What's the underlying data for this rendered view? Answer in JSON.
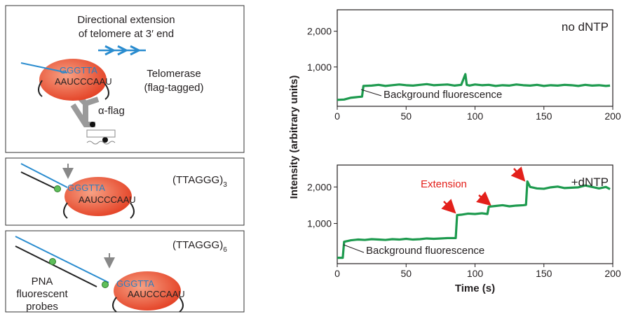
{
  "diagram": {
    "panel1": {
      "title_line1": "Directional extension",
      "title_line2": "of telomere at 3′ end",
      "enzyme_line1": "Telomerase",
      "enzyme_line2": "(flag-tagged)",
      "dna": "GGGTTA",
      "rna": "AAUCCCAAU",
      "antibody": "α-flag"
    },
    "panel2": {
      "repeat": "(TTAGGG)",
      "count": "3",
      "dna": "GGGTTA",
      "rna": "AAUCCCAAU"
    },
    "panel3": {
      "repeat": "(TTAGGG)",
      "count": "6",
      "dna": "GGGTTA",
      "rna": "AAUCCCAAU",
      "probe_line1": "PNA",
      "probe_line2": "fluorescent",
      "probe_line3": "probes"
    }
  },
  "shared_y_label": "Intensity (arbitrary units)",
  "chart_data": [
    {
      "type": "line",
      "label": "no dNTP",
      "annotations": [
        "Background fluorescence"
      ],
      "x": [
        0,
        5,
        10,
        15,
        18,
        19,
        25,
        30,
        35,
        40,
        45,
        50,
        55,
        60,
        65,
        70,
        75,
        80,
        85,
        90,
        93,
        94,
        96,
        100,
        105,
        110,
        115,
        120,
        125,
        130,
        135,
        140,
        145,
        150,
        155,
        160,
        165,
        170,
        175,
        180,
        185,
        190,
        195,
        198
      ],
      "series": [
        {
          "color": "#1d9a4e",
          "values": [
            80,
            90,
            140,
            160,
            170,
            470,
            480,
            500,
            470,
            490,
            510,
            490,
            480,
            500,
            520,
            490,
            500,
            510,
            480,
            500,
            800,
            500,
            480,
            510,
            490,
            500,
            470,
            490,
            480,
            510,
            490,
            480,
            500,
            470,
            490,
            480,
            500,
            490,
            470,
            500,
            480,
            490,
            470,
            480
          ]
        }
      ],
      "xlim": [
        0,
        200
      ],
      "xticks": [
        0,
        50,
        100,
        150,
        200
      ],
      "ylim": [
        -100,
        2600
      ],
      "yticks": [
        {
          "value": 1000,
          "label": "1,000"
        },
        {
          "value": 2000,
          "label": "2,000"
        }
      ]
    },
    {
      "type": "line",
      "label": "+dNTP",
      "annotations": [
        "Extension",
        "Background fluorescence"
      ],
      "x_label": "Time (s)",
      "x": [
        0,
        4,
        5,
        10,
        15,
        20,
        25,
        30,
        35,
        40,
        45,
        50,
        55,
        60,
        65,
        70,
        75,
        80,
        86,
        87,
        90,
        95,
        100,
        105,
        109,
        110,
        115,
        120,
        125,
        130,
        135,
        137,
        138,
        140,
        145,
        150,
        155,
        160,
        165,
        170,
        175,
        180,
        185,
        190,
        195,
        198
      ],
      "series": [
        {
          "color": "#1d9a4e",
          "values": [
            60,
            60,
            500,
            540,
            560,
            550,
            570,
            560,
            550,
            570,
            560,
            580,
            560,
            570,
            590,
            580,
            590,
            600,
            600,
            1230,
            1240,
            1270,
            1260,
            1280,
            1260,
            1460,
            1480,
            1500,
            1470,
            1490,
            1500,
            1510,
            2150,
            2000,
            1960,
            1950,
            1990,
            2010,
            1970,
            1980,
            1990,
            2040,
            2000,
            1960,
            2000,
            1940
          ]
        }
      ],
      "xlim": [
        0,
        200
      ],
      "xticks": [
        0,
        50,
        100,
        150,
        200
      ],
      "ylim": [
        -100,
        2600
      ],
      "yticks": [
        {
          "value": 1000,
          "label": "1,000"
        },
        {
          "value": 2000,
          "label": "2,000"
        }
      ]
    }
  ]
}
